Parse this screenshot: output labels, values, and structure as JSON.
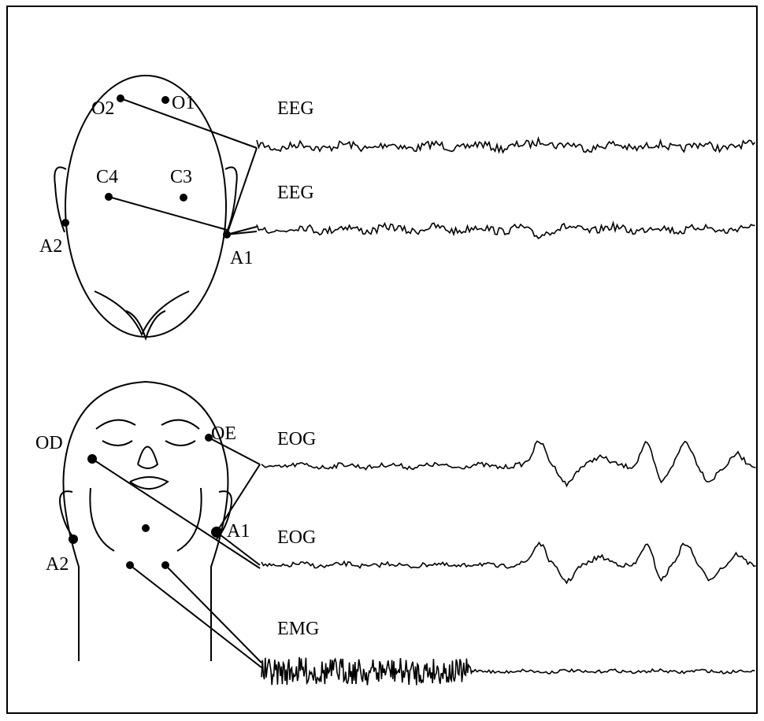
{
  "top_panel": {
    "electrodes": [
      "O2",
      "O1",
      "C4",
      "C3",
      "A2",
      "A1"
    ],
    "channels": [
      "EEG",
      "EEG"
    ]
  },
  "bottom_panel": {
    "electrodes": [
      "OD",
      "OE",
      "A1",
      "A2"
    ],
    "channels": [
      "EOG",
      "EOG",
      "EMG"
    ]
  }
}
